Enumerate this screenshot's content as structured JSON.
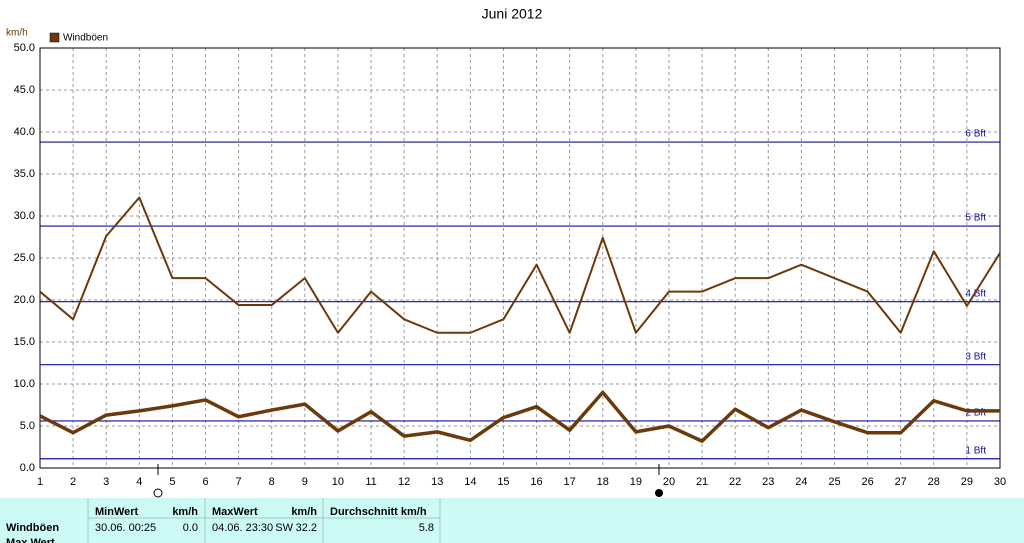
{
  "chart_data": {
    "type": "line",
    "title": "Juni 2012",
    "ylabel": "km/h",
    "x": [
      1,
      2,
      3,
      4,
      5,
      6,
      7,
      8,
      9,
      10,
      11,
      12,
      13,
      14,
      15,
      16,
      17,
      18,
      19,
      20,
      21,
      22,
      23,
      24,
      25,
      26,
      27,
      28,
      29,
      30
    ],
    "series": [
      {
        "name": "Windböen",
        "color": "#6b3a0a",
        "values": [
          21.0,
          17.7,
          27.6,
          32.2,
          22.6,
          22.6,
          19.4,
          19.4,
          22.6,
          16.1,
          21.0,
          17.7,
          16.1,
          16.1,
          17.7,
          24.2,
          16.1,
          27.4,
          16.1,
          21.0,
          21.0,
          22.6,
          22.6,
          24.2,
          22.6,
          21.0,
          16.1,
          25.8,
          19.3,
          25.6
        ]
      },
      {
        "color": "#6b3a0a",
        "values": [
          6.2,
          4.2,
          6.3,
          6.8,
          7.4,
          8.1,
          6.1,
          6.9,
          7.6,
          4.4,
          6.7,
          3.8,
          4.3,
          3.3,
          6.0,
          7.3,
          4.5,
          9.0,
          4.3,
          5.0,
          3.2,
          7.0,
          4.8,
          6.9,
          5.5,
          4.2,
          4.2,
          8.0,
          6.8,
          6.8
        ]
      }
    ],
    "xlim": [
      1,
      30
    ],
    "xticks": [
      1,
      2,
      3,
      4,
      5,
      6,
      7,
      8,
      9,
      10,
      11,
      12,
      13,
      14,
      15,
      16,
      17,
      18,
      19,
      20,
      21,
      22,
      23,
      24,
      25,
      26,
      27,
      28,
      29,
      30
    ],
    "ylim": [
      0,
      50
    ],
    "yticks": [
      {
        "value": 0,
        "label": "0.0"
      },
      {
        "value": 5,
        "label": "5.0"
      },
      {
        "value": 10,
        "label": "10.0"
      },
      {
        "value": 15,
        "label": "15.0"
      },
      {
        "value": 20,
        "label": "20.0"
      },
      {
        "value": 25,
        "label": "25.0"
      },
      {
        "value": 30,
        "label": "30.0"
      },
      {
        "value": 35,
        "label": "35.0"
      },
      {
        "value": 40,
        "label": "40.0"
      },
      {
        "value": 45,
        "label": "45.0"
      },
      {
        "value": 50,
        "label": "50.0"
      }
    ],
    "grid": true,
    "legend": "top-left",
    "bft_lines": [
      {
        "value": 1.1,
        "label": "1 Bft"
      },
      {
        "value": 5.6,
        "label": "2 Bft"
      },
      {
        "value": 12.3,
        "label": "3 Bft"
      },
      {
        "value": 19.8,
        "label": "4 Bft"
      },
      {
        "value": 28.8,
        "label": "5 Bft"
      },
      {
        "value": 38.8,
        "label": "6 Bft"
      }
    ],
    "bft_color": "#1010a0"
  },
  "table": {
    "header": [
      "MinWert",
      "km/h",
      "MaxWert",
      "km/h",
      "Durchschnitt km/h"
    ],
    "rows": [
      [
        "Windböen",
        "30.06.  00:25",
        "0.0",
        "04.06.  23:30",
        "SW",
        "32.2",
        "5.8"
      ],
      [
        "Max Wert"
      ]
    ]
  }
}
